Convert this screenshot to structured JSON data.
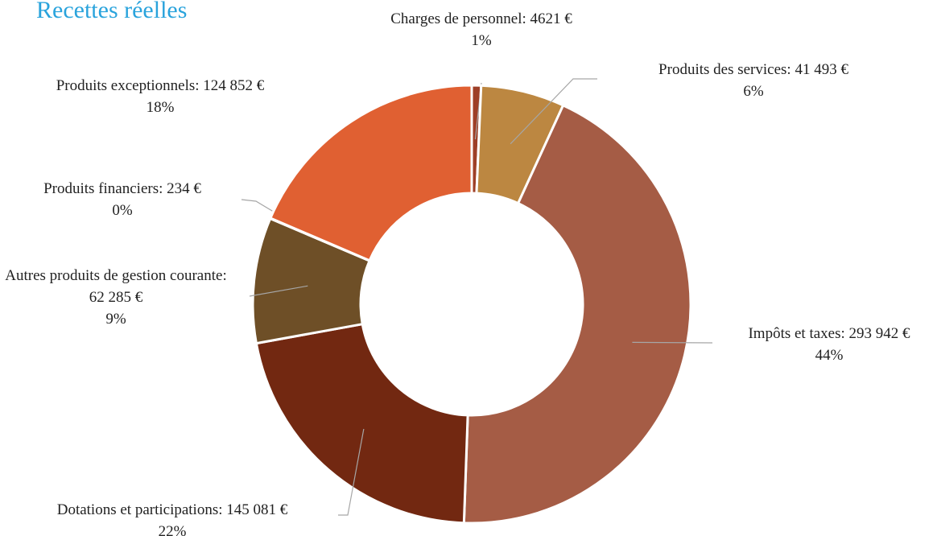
{
  "chart_data": {
    "type": "donut",
    "title": "Recettes réelles",
    "categories": [
      "Charges de personnel",
      "Produits des services",
      "Impôts et taxes",
      "Dotations et participations",
      "Autres produits de gestion courante",
      "Produits financiers",
      "Produits exceptionnels"
    ],
    "values": [
      4621,
      41493,
      293942,
      145081,
      62285,
      234,
      124852
    ],
    "value_labels": [
      "4621 €",
      "41 493 €",
      "293 942 €",
      "145 081 €",
      "62 285 €",
      "234 €",
      "124 852 €"
    ],
    "percent_labels": [
      "1%",
      "6%",
      "44%",
      "22%",
      "9%",
      "0%",
      "18%"
    ],
    "label_separator": ": ",
    "colors": [
      "#9e3f27",
      "#bc8741",
      "#a55c45",
      "#722811",
      "#6e4f27",
      "#c4502c",
      "#e06032"
    ]
  }
}
